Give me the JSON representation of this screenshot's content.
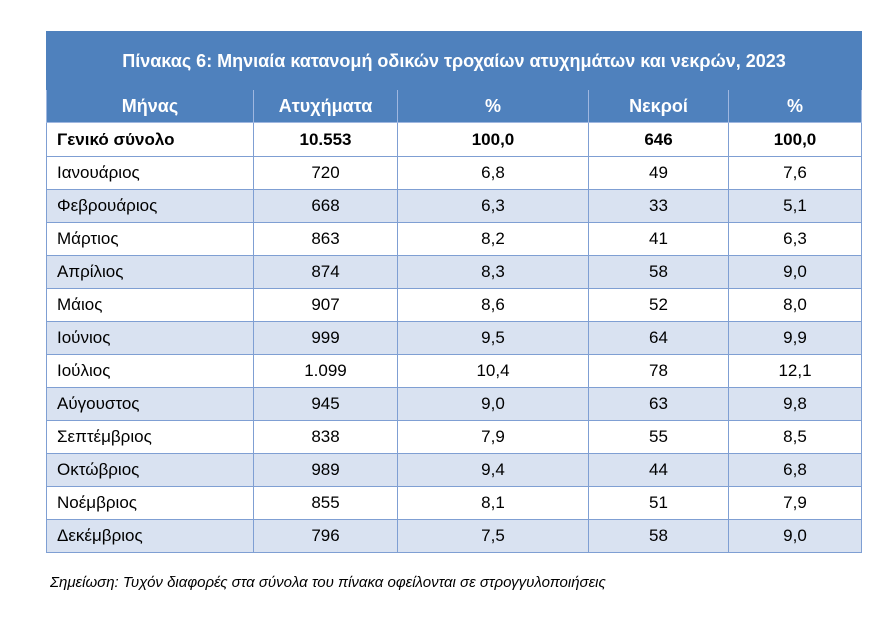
{
  "table": {
    "title": "Πίνακας 6: Μηνιαία κατανομή οδικών τροχαίων ατυχημάτων και νεκρών, 2023",
    "headers": [
      "Μήνας",
      "Ατυχήματα",
      "%",
      "Νεκροί",
      "%"
    ],
    "total": [
      "Γενικό σύνολο",
      "10.553",
      "100,0",
      "646",
      "100,0"
    ],
    "rows": [
      [
        "Ιανουάριος",
        "720",
        "6,8",
        "49",
        "7,6"
      ],
      [
        "Φεβρουάριος",
        "668",
        "6,3",
        "33",
        "5,1"
      ],
      [
        "Μάρτιος",
        "863",
        "8,2",
        "41",
        "6,3"
      ],
      [
        "Απρίλιος",
        "874",
        "8,3",
        "58",
        "9,0"
      ],
      [
        "Μάιος",
        "907",
        "8,6",
        "52",
        "8,0"
      ],
      [
        "Ιούνιος",
        "999",
        "9,5",
        "64",
        "9,9"
      ],
      [
        "Ιούλιος",
        "1.099",
        "10,4",
        "78",
        "12,1"
      ],
      [
        "Αύγουστος",
        "945",
        "9,0",
        "63",
        "9,8"
      ],
      [
        "Σεπτέμβριος",
        "838",
        "7,9",
        "55",
        "8,5"
      ],
      [
        "Οκτώβριος",
        "989",
        "9,4",
        "44",
        "6,8"
      ],
      [
        "Νοέμβριος",
        "855",
        "8,1",
        "51",
        "7,9"
      ],
      [
        "Δεκέμβριος",
        "796",
        "7,5",
        "58",
        "9,0"
      ]
    ]
  },
  "note": "Σημείωση: Τυχόν διαφορές στα σύνολα του πίνακα οφείλονται σε στρογγυλοποιήσεις",
  "colors": {
    "header_bg": "#4f81bd",
    "row_alt_bg": "#d9e2f1"
  }
}
